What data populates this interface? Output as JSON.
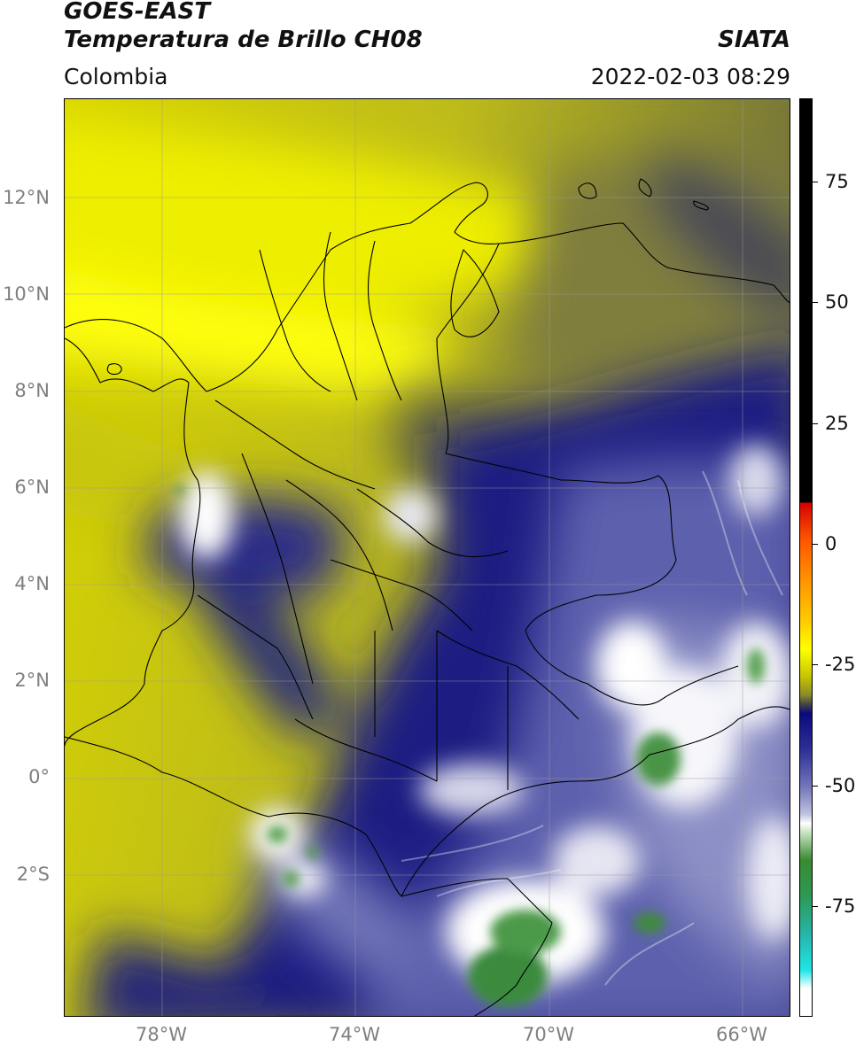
{
  "header": {
    "satellite": "GOES-EAST",
    "product": "Temperatura de Brillo CH08",
    "source": "SIATA",
    "region": "Colombia",
    "datetime": "2022-02-03 08:29"
  },
  "map": {
    "lat_ticks": [
      "12°N",
      "10°N",
      "8°N",
      "6°N",
      "4°N",
      "2°N",
      "0°",
      "2°S"
    ],
    "lon_ticks": [
      "78°W",
      "74°W",
      "70°W",
      "66°W"
    ],
    "extent_lon": [
      -80,
      -65
    ],
    "extent_lat": [
      -5,
      14
    ]
  },
  "colorbar": {
    "ticks": [
      "75",
      "50",
      "25",
      "0",
      "-25",
      "-50",
      "-75"
    ],
    "range": [
      -95,
      95
    ],
    "colors": {
      "warm": "#000000",
      "hot": "#ff0000",
      "dry": "#ffff00",
      "moist": "#12127e",
      "cold": "#ffffff",
      "very_cold": "#3a8a30",
      "extreme": "#1ee6e6"
    }
  },
  "colors": {
    "yellow_dry": "#d4d200",
    "olive": "#7e7d30",
    "navy": "#1b1c7e",
    "periwinkle": "#6f72b4",
    "white": "#f4f4f8",
    "green": "#3f8a3e"
  }
}
